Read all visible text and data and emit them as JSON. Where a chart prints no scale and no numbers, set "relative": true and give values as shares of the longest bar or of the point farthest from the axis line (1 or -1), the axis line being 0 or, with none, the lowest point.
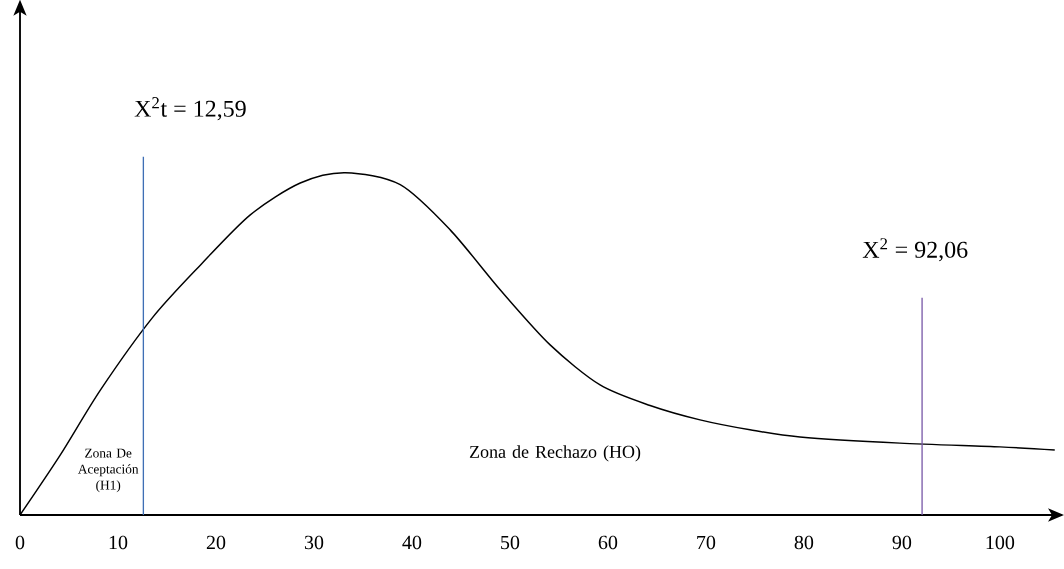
{
  "chart_data": {
    "type": "line",
    "relative": true,
    "x": [
      0,
      4.1,
      8.2,
      13.5,
      18.4,
      23.5,
      28.6,
      33.2,
      38.8,
      43.9,
      49,
      54.1,
      59.2,
      64.3,
      69.4,
      74.5,
      79.6,
      89.8,
      100,
      105.6
    ],
    "series": [
      {
        "color": "#000000",
        "values": [
          0,
          0.175,
          0.365,
          0.576,
          0.73,
          0.877,
          0.97,
          1.0,
          0.965,
          0.833,
          0.658,
          0.497,
          0.38,
          0.32,
          0.278,
          0.249,
          0.228,
          0.21,
          0.199,
          0.19
        ]
      }
    ],
    "xlim": [
      0,
      106
    ],
    "xticks": [
      0,
      10,
      20,
      30,
      40,
      50,
      60,
      70,
      80,
      90,
      100
    ],
    "ref_lines": [
      {
        "axis": "x",
        "value": 12.59,
        "label": "X$^{2}$t = 12,59",
        "color": "#3f6fb5"
      },
      {
        "axis": "x",
        "value": 92.06,
        "label": "X$^{2}$ = 92,06",
        "color": "#7a5aa8"
      }
    ],
    "annotations": [
      "Zona De Aceptación (H1)",
      "Zona de Rechazo (HO)"
    ],
    "grid": false,
    "marker": "none",
    "line_style": "solid"
  }
}
